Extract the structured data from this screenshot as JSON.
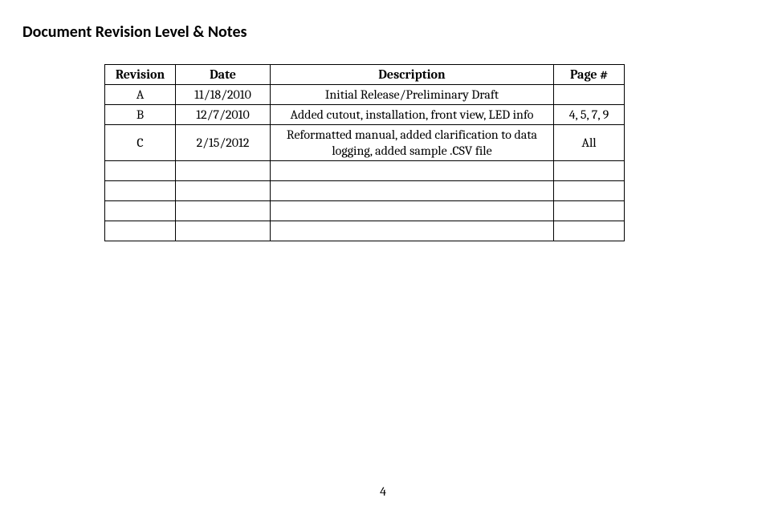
{
  "title": "Document Revision Level & Notes",
  "table": {
    "columns": [
      "Revision",
      "Date",
      "Description",
      "Page #"
    ],
    "rows": [
      {
        "rev": "A",
        "date": "11/18/2010",
        "desc": "Initial Release/Preliminary Draft",
        "page": ""
      },
      {
        "rev": "B",
        "date": "12/7/2010",
        "desc": "Added cutout, installation, front view, LED info",
        "page": "4, 5, 7, 9"
      },
      {
        "rev": "C",
        "date": "2/15/2012",
        "desc": "Reformatted manual, added clarification to data logging, added sample .CSV file",
        "page": "All"
      }
    ],
    "empty_rows": 4
  },
  "page_number": "4"
}
